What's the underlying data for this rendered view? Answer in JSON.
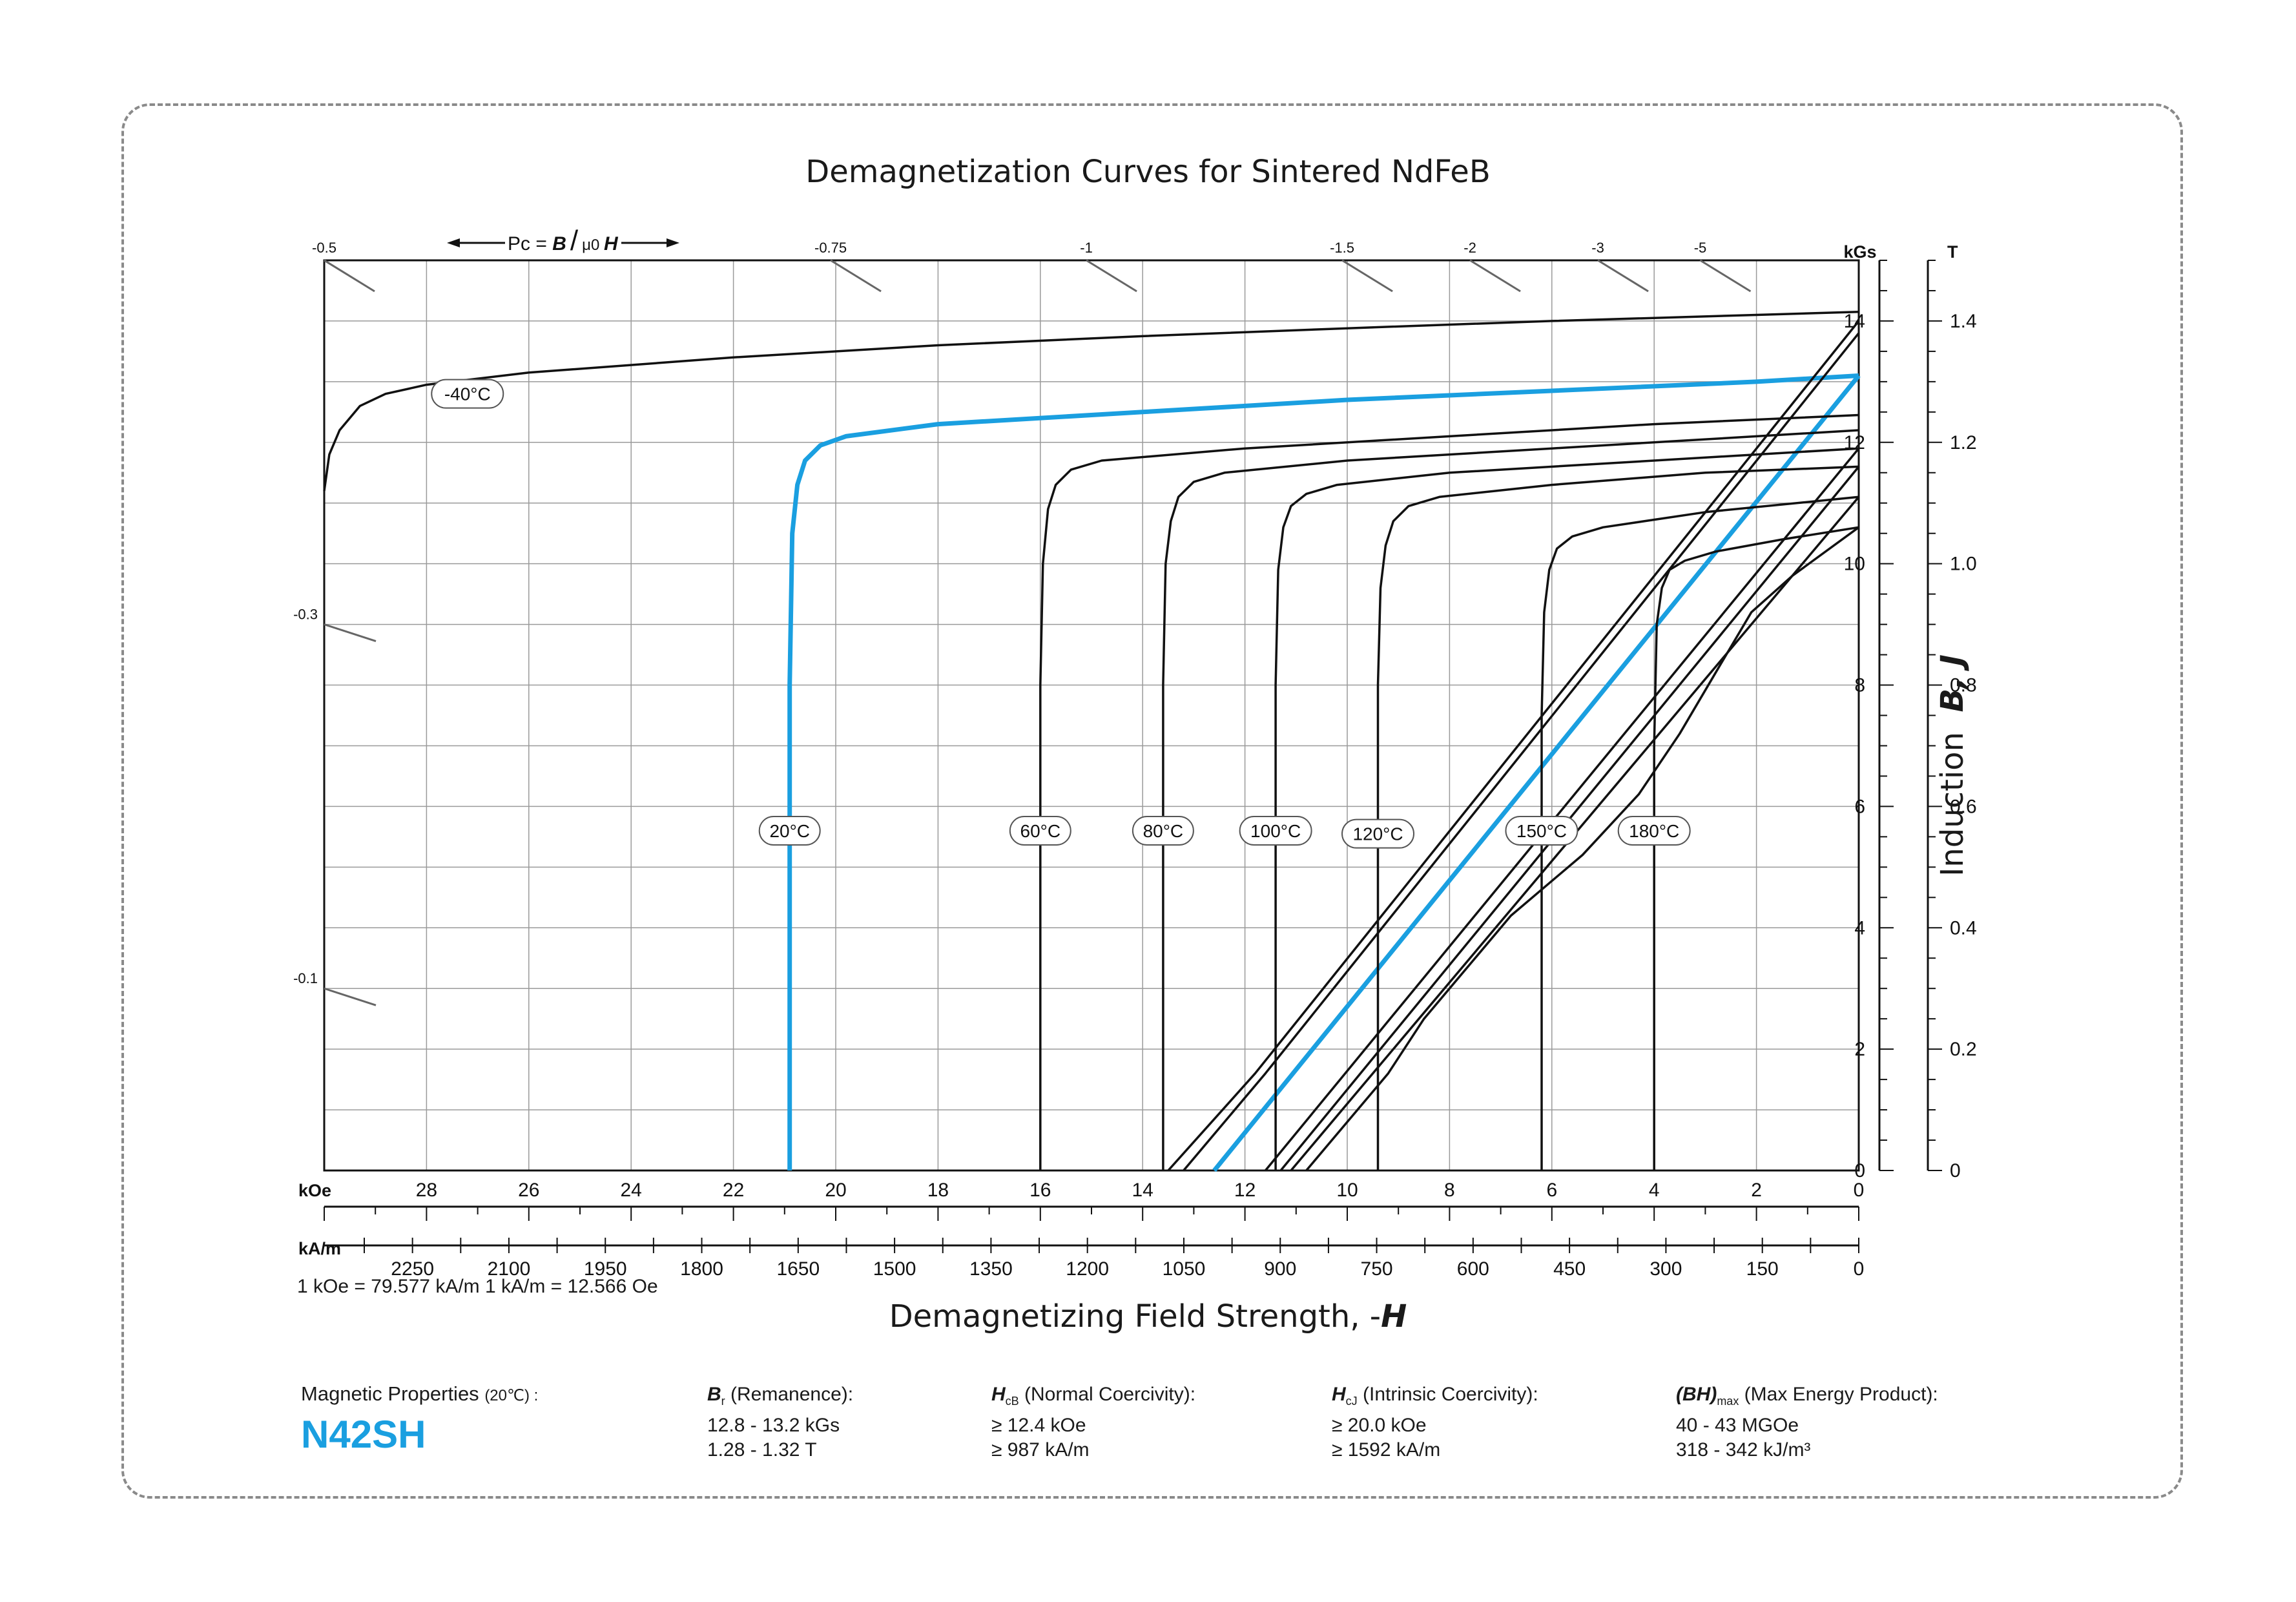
{
  "title": "Demagnetization Curves for Sintered NdFeB",
  "x_axis_title": "Demagnetizing Field Strength, -",
  "x_axis_title_symbol": "H",
  "y_axis_title": "Induction",
  "y_axis_title_symbols": "B, J",
  "conversion_note": "1 kOe = 79.577 kA/m   1 kA/m = 12.566 Oe",
  "axis_units": {
    "koe": "kOe",
    "kam": "kA/m",
    "kgs": "kGs",
    "tesla": "T"
  },
  "pc_label": {
    "prefix": "Pc = ",
    "b": "B",
    "slash": "/",
    "mu": "μ0 ",
    "h": "H"
  },
  "colors": {
    "accent": "#1a9fe0",
    "curve": "#111111",
    "grid": "#9a9a9a"
  },
  "properties": {
    "heading": "Magnetic Properties ",
    "heading_small": "(20℃) :",
    "grade": "N42SH",
    "br": {
      "symbol": "B",
      "sub": "r",
      "label": " (Remanence):",
      "line1": "12.8 - 13.2 kGs",
      "line2": "1.28 - 1.32 T"
    },
    "hcb": {
      "symbol": "H",
      "sub": "cB",
      "label": " (Normal Coercivity):",
      "line1": "≥ 12.4 kOe",
      "line2": "≥ 987 kA/m"
    },
    "hcj": {
      "symbol": "H",
      "sub": "cJ",
      "label": " (Intrinsic Coercivity):",
      "line1": "≥ 20.0 kOe",
      "line2": "≥ 1592 kA/m"
    },
    "bh": {
      "symbol": "(BH)",
      "sub": "max",
      "label": " (Max Energy Product):",
      "line1": "40 - 43 MGOe",
      "line2": "318 - 342 kJ/m³"
    }
  },
  "chart_data": {
    "type": "line",
    "x_unit": "kOe",
    "y_unit": "kGs",
    "xlim": [
      30,
      0
    ],
    "ylim": [
      0,
      15
    ],
    "x_ticks_koe": [
      28,
      26,
      24,
      22,
      20,
      18,
      16,
      14,
      12,
      10,
      8,
      6,
      4,
      2,
      0
    ],
    "x_ticks_kam": [
      2250,
      2100,
      1950,
      1800,
      1650,
      1500,
      1350,
      1200,
      1050,
      900,
      750,
      600,
      450,
      300,
      150,
      0
    ],
    "y_ticks_kgs": [
      0,
      2,
      4,
      6,
      8,
      10,
      12,
      14
    ],
    "y_ticks_t": [
      "0",
      "0.2",
      "0.4",
      "0.6",
      "0.8",
      "1.0",
      "1.2",
      "1.4"
    ],
    "grid": true,
    "pc_lines": [
      {
        "label": "-0.5",
        "edge": "top",
        "x_koe": 30
      },
      {
        "label": "-0.75",
        "edge": "top",
        "x_koe": 20.1
      },
      {
        "label": "-1",
        "edge": "top",
        "x_koe": 15.1
      },
      {
        "label": "-1.5",
        "edge": "top",
        "x_koe": 10.1
      },
      {
        "label": "-2",
        "edge": "top",
        "x_koe": 7.6
      },
      {
        "label": "-3",
        "edge": "top",
        "x_koe": 5.1
      },
      {
        "label": "-5",
        "edge": "top",
        "x_koe": 3.1
      },
      {
        "label": "-0.3",
        "edge": "left",
        "y_kgs": 9
      },
      {
        "label": "-0.1",
        "edge": "left",
        "y_kgs": 3
      }
    ],
    "series": [
      {
        "name": "-40°C",
        "highlight": false,
        "label_at": [
          27.2,
          12.8
        ],
        "J": [
          [
            30,
            11.2
          ],
          [
            29.9,
            11.8
          ],
          [
            29.7,
            12.2
          ],
          [
            29.3,
            12.6
          ],
          [
            28.8,
            12.8
          ],
          [
            28,
            12.95
          ],
          [
            26,
            13.15
          ],
          [
            22,
            13.4
          ],
          [
            18,
            13.6
          ],
          [
            14,
            13.75
          ],
          [
            10,
            13.88
          ],
          [
            6,
            14.0
          ],
          [
            2,
            14.1
          ],
          [
            0,
            14.15
          ]
        ],
        "B": []
      },
      {
        "name": "20°C",
        "highlight": true,
        "label_at": [
          20.9,
          5.6
        ],
        "J": [
          [
            20.9,
            0
          ],
          [
            20.9,
            8
          ],
          [
            20.85,
            10.5
          ],
          [
            20.75,
            11.3
          ],
          [
            20.6,
            11.7
          ],
          [
            20.3,
            11.95
          ],
          [
            19.8,
            12.1
          ],
          [
            18,
            12.3
          ],
          [
            14,
            12.5
          ],
          [
            10,
            12.7
          ],
          [
            6,
            12.85
          ],
          [
            2,
            13.0
          ],
          [
            0,
            13.1
          ]
        ],
        "B": [
          [
            12.6,
            0
          ],
          [
            0,
            13.1
          ]
        ]
      },
      {
        "name": "60°C",
        "highlight": false,
        "label_at": [
          16.0,
          5.6
        ],
        "J": [
          [
            16.0,
            0
          ],
          [
            16.0,
            8
          ],
          [
            15.95,
            10.0
          ],
          [
            15.85,
            10.9
          ],
          [
            15.7,
            11.3
          ],
          [
            15.4,
            11.55
          ],
          [
            14.8,
            11.7
          ],
          [
            12,
            11.9
          ],
          [
            8,
            12.1
          ],
          [
            4,
            12.3
          ],
          [
            0,
            12.45
          ]
        ],
        "B": [
          [
            13.5,
            0
          ],
          [
            11.8,
            1.6
          ],
          [
            0,
            14.0
          ]
        ]
      },
      {
        "name": "80°C",
        "highlight": false,
        "label_at": [
          13.6,
          5.6
        ],
        "J": [
          [
            13.6,
            0
          ],
          [
            13.6,
            8
          ],
          [
            13.55,
            10.0
          ],
          [
            13.45,
            10.7
          ],
          [
            13.3,
            11.1
          ],
          [
            13.0,
            11.35
          ],
          [
            12.4,
            11.5
          ],
          [
            10,
            11.7
          ],
          [
            6,
            11.9
          ],
          [
            2,
            12.1
          ],
          [
            0,
            12.2
          ]
        ],
        "B": [
          [
            13.2,
            0
          ],
          [
            11.6,
            1.6
          ],
          [
            0,
            13.8
          ]
        ]
      },
      {
        "name": "100°C",
        "highlight": false,
        "label_at": [
          11.4,
          5.6
        ],
        "J": [
          [
            11.4,
            0
          ],
          [
            11.4,
            8
          ],
          [
            11.35,
            9.9
          ],
          [
            11.25,
            10.6
          ],
          [
            11.1,
            10.95
          ],
          [
            10.8,
            11.15
          ],
          [
            10.2,
            11.3
          ],
          [
            8,
            11.5
          ],
          [
            4,
            11.7
          ],
          [
            0,
            11.9
          ]
        ],
        "B": [
          [
            11.6,
            0
          ],
          [
            0,
            11.9
          ]
        ]
      },
      {
        "name": "120°C",
        "highlight": false,
        "label_at": [
          9.4,
          5.55
        ],
        "J": [
          [
            9.4,
            0
          ],
          [
            9.4,
            8
          ],
          [
            9.35,
            9.6
          ],
          [
            9.25,
            10.3
          ],
          [
            9.1,
            10.7
          ],
          [
            8.8,
            10.95
          ],
          [
            8.2,
            11.1
          ],
          [
            6,
            11.3
          ],
          [
            3,
            11.5
          ],
          [
            0,
            11.6
          ]
        ],
        "B": [
          [
            11.3,
            0
          ],
          [
            0,
            11.6
          ]
        ]
      },
      {
        "name": "150°C",
        "highlight": false,
        "label_at": [
          6.2,
          5.6
        ],
        "J": [
          [
            6.2,
            0
          ],
          [
            6.2,
            7.5
          ],
          [
            6.15,
            9.2
          ],
          [
            6.05,
            9.9
          ],
          [
            5.9,
            10.25
          ],
          [
            5.6,
            10.45
          ],
          [
            5.0,
            10.6
          ],
          [
            3,
            10.85
          ],
          [
            0,
            11.1
          ]
        ],
        "B": [
          [
            11.1,
            0
          ],
          [
            0,
            11.1
          ]
        ]
      },
      {
        "name": "180°C",
        "highlight": false,
        "label_at": [
          4.0,
          5.6
        ],
        "J": [
          [
            4.0,
            0
          ],
          [
            4.0,
            7
          ],
          [
            3.95,
            9.0
          ],
          [
            3.85,
            9.6
          ],
          [
            3.7,
            9.9
          ],
          [
            3.4,
            10.05
          ],
          [
            2.8,
            10.2
          ],
          [
            1.5,
            10.4
          ],
          [
            0,
            10.6
          ]
        ],
        "B": [
          [
            10.8,
            0
          ],
          [
            9.2,
            1.6
          ],
          [
            8.5,
            2.5
          ],
          [
            6.8,
            4.2
          ],
          [
            5.4,
            5.2
          ],
          [
            4.3,
            6.2
          ],
          [
            3.5,
            7.2
          ],
          [
            2.8,
            8.2
          ],
          [
            2.1,
            9.2
          ],
          [
            1.3,
            9.8
          ],
          [
            0,
            10.6
          ]
        ]
      }
    ]
  }
}
